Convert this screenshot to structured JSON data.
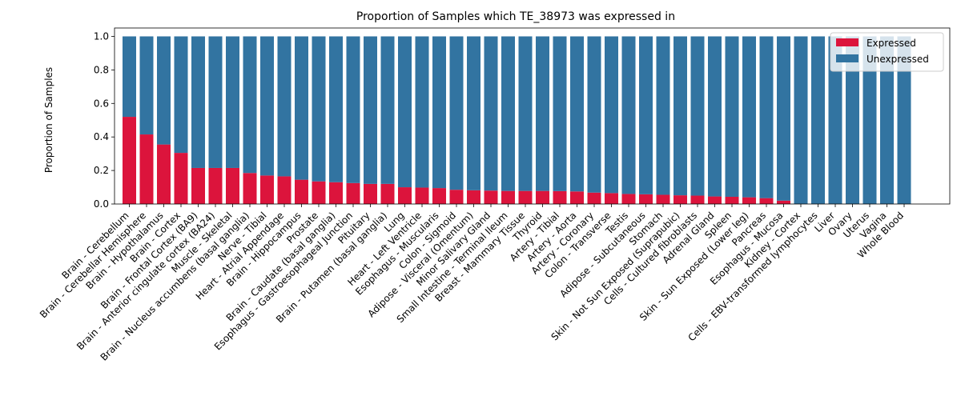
{
  "chart_data": {
    "type": "bar",
    "stacked": true,
    "title": "Proportion of Samples which TE_38973 was expressed in",
    "xlabel": "",
    "ylabel": "Proportion of Samples",
    "ylim": [
      0,
      1.05
    ],
    "yticks": [
      "0.0",
      "0.2",
      "0.4",
      "0.6",
      "0.8",
      "1.0"
    ],
    "legend": {
      "placement": "top-right"
    },
    "categories": [
      "Brain - Cerebellum",
      "Brain - Cerebellar Hemisphere",
      "Brain - Hypothalamus",
      "Brain - Cortex",
      "Brain - Frontal Cortex (BA9)",
      "Brain - Anterior cingulate cortex (BA24)",
      "Muscle - Skeletal",
      "Brain - Nucleus accumbens (basal ganglia)",
      "Nerve - Tibial",
      "Heart - Atrial Appendage",
      "Brain - Hippocampus",
      "Prostate",
      "Brain - Caudate (basal ganglia)",
      "Esophagus - Gastroesophageal Junction",
      "Pituitary",
      "Brain - Putamen (basal ganglia)",
      "Lung",
      "Heart - Left Ventricle",
      "Esophagus - Muscularis",
      "Colon - Sigmoid",
      "Adipose - Visceral (Omentum)",
      "Minor Salivary Gland",
      "Small Intestine - Terminal Ileum",
      "Breast - Mammary Tissue",
      "Thyroid",
      "Artery - Tibial",
      "Artery - Aorta",
      "Artery - Coronary",
      "Colon - Transverse",
      "Testis",
      "Adipose - Subcutaneous",
      "Stomach",
      "Skin - Not Sun Exposed (Suprapubic)",
      "Cells - Cultured fibroblasts",
      "Adrenal Gland",
      "Spleen",
      "Skin - Sun Exposed (Lower leg)",
      "Pancreas",
      "Esophagus - Mucosa",
      "Kidney - Cortex",
      "Cells - EBV-transformed lymphocytes",
      "Liver",
      "Ovary",
      "Uterus",
      "Vagina",
      "Whole Blood"
    ],
    "series": [
      {
        "name": "Expressed",
        "color": "#dc143c",
        "values": [
          0.52,
          0.415,
          0.355,
          0.305,
          0.215,
          0.215,
          0.215,
          0.185,
          0.17,
          0.165,
          0.145,
          0.135,
          0.13,
          0.125,
          0.12,
          0.12,
          0.1,
          0.098,
          0.095,
          0.085,
          0.082,
          0.08,
          0.078,
          0.078,
          0.078,
          0.077,
          0.075,
          0.068,
          0.065,
          0.06,
          0.058,
          0.055,
          0.052,
          0.05,
          0.045,
          0.043,
          0.04,
          0.035,
          0.02,
          0,
          0,
          0,
          0,
          0,
          0,
          0
        ]
      },
      {
        "name": "Unexpressed",
        "color": "#3274a1",
        "values": [
          0.48,
          0.585,
          0.645,
          0.695,
          0.785,
          0.785,
          0.785,
          0.815,
          0.83,
          0.835,
          0.855,
          0.865,
          0.87,
          0.875,
          0.88,
          0.88,
          0.9,
          0.902,
          0.905,
          0.915,
          0.918,
          0.92,
          0.922,
          0.922,
          0.922,
          0.923,
          0.925,
          0.932,
          0.935,
          0.94,
          0.942,
          0.945,
          0.948,
          0.95,
          0.955,
          0.957,
          0.96,
          0.965,
          0.98,
          1,
          1,
          1,
          1,
          1,
          1,
          1
        ]
      }
    ]
  }
}
